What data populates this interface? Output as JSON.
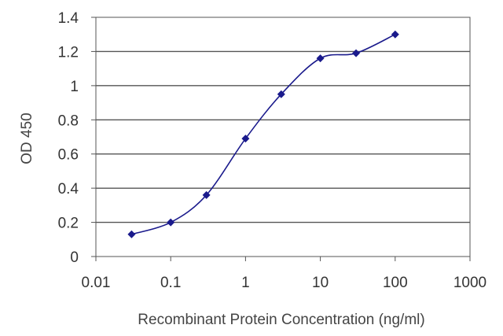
{
  "chart_data": {
    "type": "line",
    "title": "",
    "xlabel": "Recombinant Protein Concentration (ng/ml)",
    "ylabel": "OD 450",
    "x_scale": "log",
    "xlim": [
      0.01,
      1000
    ],
    "ylim": [
      0,
      1.4
    ],
    "x_ticks": [
      "0.01",
      "0.1",
      "1",
      "10",
      "100",
      "1000"
    ],
    "y_ticks": [
      "0",
      "0.2",
      "0.4",
      "0.6",
      "0.8",
      "1",
      "1.2",
      "1.4"
    ],
    "grid": "horizontal",
    "legend": "none",
    "series": [
      {
        "x": [
          0.03,
          0.1,
          0.3,
          1,
          3,
          10,
          30,
          100
        ],
        "y": [
          0.13,
          0.2,
          0.36,
          0.69,
          0.95,
          1.16,
          1.19,
          1.3
        ]
      }
    ],
    "colors": {
      "series": "#1a1a8c",
      "grid": "#555555",
      "axis": "#555555"
    }
  }
}
